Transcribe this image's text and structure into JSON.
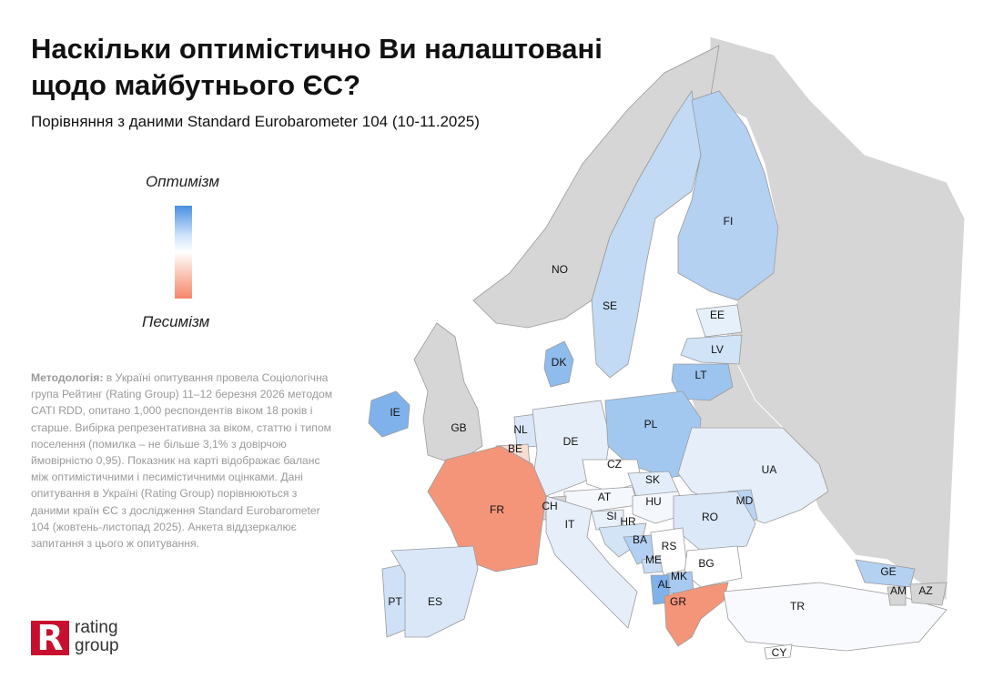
{
  "title": "Наскільки оптимістично Ви налаштовані щодо майбутнього ЄС?",
  "subtitle": "Порівняння з даними Standard Eurobarometer 104 (10-11.2025)",
  "legend": {
    "top_label": "Оптимізм",
    "bottom_label": "Песимізм",
    "colors": {
      "optimism": "#4a90e2",
      "neutral": "#ffffff",
      "pessimism": "#f4876a"
    }
  },
  "methodology": {
    "heading": "Методологія:",
    "text": " в Україні опитування провела Соціологічна група Рейтинг (Rating Group) 11–12 березня 2026 методом CATI RDD, опитано 1,000 респондентів віком 18 років і старше. Вибірка репрезентативна за віком, статтю і типом поселення (помилка – не більше 3,1% з довірчою ймовірністю 0,95). Показник на карті відображає баланс між оптимістичними і песимістичними оцінками. Дані опитування в Україні (Rating Group) порівнюються з даними країн ЄС з дослідження Standard Eurobarometer 104 (жовтень-листопад 2025). Анкета віддзеркалює запитання з цього ж опитування."
  },
  "logo": {
    "mark": "R",
    "line1": "rating",
    "line2": "group"
  },
  "countries": [
    {
      "code": "NO",
      "fill": "#d6d6d6"
    },
    {
      "code": "SE",
      "fill": "#c2daf4"
    },
    {
      "code": "FI",
      "fill": "#b4d1f2"
    },
    {
      "code": "EE",
      "fill": "#e6f0fb"
    },
    {
      "code": "LV",
      "fill": "#d0e3f7"
    },
    {
      "code": "LT",
      "fill": "#9cc4ef"
    },
    {
      "code": "DK",
      "fill": "#8fbcec"
    },
    {
      "code": "IE",
      "fill": "#7fb2ea"
    },
    {
      "code": "GB",
      "fill": "#d6d6d6"
    },
    {
      "code": "NL",
      "fill": "#d8e6f7"
    },
    {
      "code": "BE",
      "fill": "#f6ddd2"
    },
    {
      "code": "DE",
      "fill": "#e6eef9"
    },
    {
      "code": "PL",
      "fill": "#a3c8f0"
    },
    {
      "code": "CZ",
      "fill": "#ffffff"
    },
    {
      "code": "SK",
      "fill": "#e2edf9"
    },
    {
      "code": "AT",
      "fill": "#f4f7fc"
    },
    {
      "code": "CH",
      "fill": "#d6d6d6"
    },
    {
      "code": "FR",
      "fill": "#f4957a"
    },
    {
      "code": "UA",
      "fill": "#e6eef9"
    },
    {
      "code": "HU",
      "fill": "#f4f7fc"
    },
    {
      "code": "SI",
      "fill": "#e8f0fa"
    },
    {
      "code": "HR",
      "fill": "#d3e4f7"
    },
    {
      "code": "IT",
      "fill": "#e6eef9"
    },
    {
      "code": "MD",
      "fill": "#b9d5f3"
    },
    {
      "code": "RO",
      "fill": "#dbe8f8"
    },
    {
      "code": "BA",
      "fill": "#b3d0f2"
    },
    {
      "code": "RS",
      "fill": "#ffffff"
    },
    {
      "code": "ME",
      "fill": "#c9ddf5"
    },
    {
      "code": "BG",
      "fill": "#ffffff"
    },
    {
      "code": "MK",
      "fill": "#a9caf0"
    },
    {
      "code": "AL",
      "fill": "#7fb2ea"
    },
    {
      "code": "GR",
      "fill": "#f4957a"
    },
    {
      "code": "PT",
      "fill": "#cfe1f6"
    },
    {
      "code": "ES",
      "fill": "#d9e7f8"
    },
    {
      "code": "TR",
      "fill": "#f8fafd"
    },
    {
      "code": "GE",
      "fill": "#b4d1f2"
    },
    {
      "code": "AM",
      "fill": "#d6d6d6"
    },
    {
      "code": "AZ",
      "fill": "#d6d6d6"
    },
    {
      "code": "CY",
      "fill": "#ffffff"
    }
  ]
}
